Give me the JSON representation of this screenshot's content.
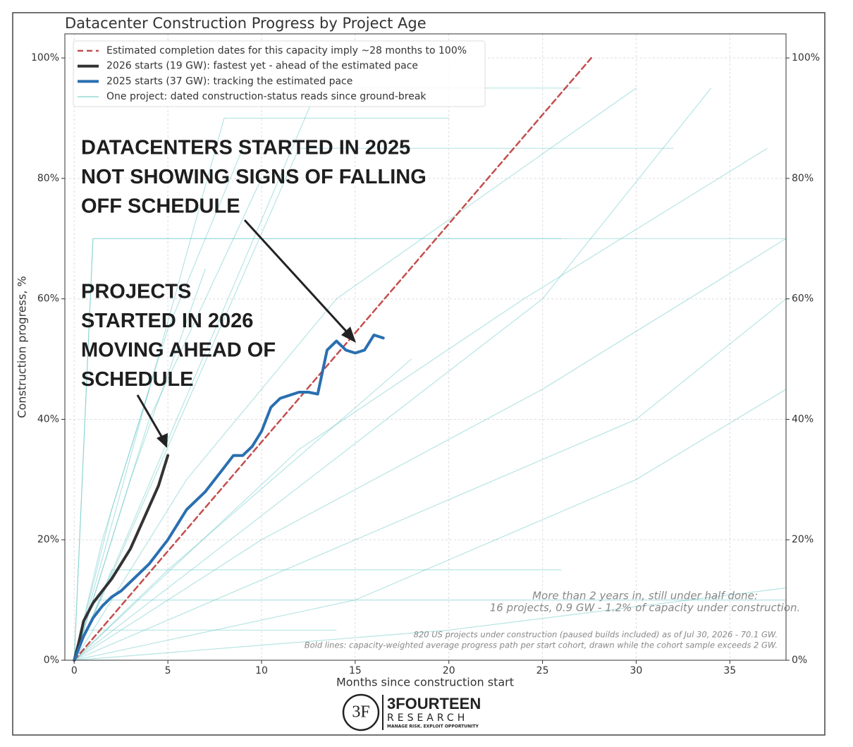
{
  "chart_data": {
    "type": "line",
    "title": "Datacenter Construction Progress by Project Age",
    "x_label": "Months since construction start",
    "y_label": "Construction progress, %",
    "xlim": [
      -0.5,
      38
    ],
    "ylim": [
      0,
      104
    ],
    "y2lim": [
      0,
      104
    ],
    "xticks": [
      0,
      5,
      10,
      15,
      20,
      25,
      30,
      35
    ],
    "yticks": [
      {
        "value": 0,
        "label": "0%"
      },
      {
        "value": 20,
        "label": "20%"
      },
      {
        "value": 40,
        "label": "40%"
      },
      {
        "value": 60,
        "label": "60%"
      },
      {
        "value": 80,
        "label": "80%"
      },
      {
        "value": 100,
        "label": "100%"
      }
    ],
    "y2ticks": [
      {
        "value": 0,
        "label": "0%"
      },
      {
        "value": 20,
        "label": "20%"
      },
      {
        "value": 40,
        "label": "40%"
      },
      {
        "value": 60,
        "label": "60%"
      },
      {
        "value": 80,
        "label": "80%"
      },
      {
        "value": 100,
        "label": "100%"
      }
    ],
    "grid": true,
    "legend": "upper left",
    "series": [
      {
        "name": "Estimated completion dates for this capacity imply ~28 months to 100%",
        "color": "#c44e4e",
        "dashed": true,
        "x": [
          0,
          27.6
        ],
        "values": [
          0,
          100
        ]
      },
      {
        "name": "2026 starts (19 GW): fastest yet - ahead of the estimated pace",
        "color": "#333333",
        "x": [
          0,
          0.25,
          0.5,
          1,
          1.5,
          2,
          2.5,
          3,
          3.5,
          4,
          4.5,
          4.8,
          5
        ],
        "values": [
          0,
          3,
          6.5,
          9.5,
          11.5,
          13.5,
          16,
          18.5,
          22,
          25.5,
          29,
          32,
          34
        ]
      },
      {
        "name": "2025 starts (37 GW): tracking the estimated pace",
        "color": "#2a6fb0",
        "x": [
          0,
          0.5,
          1,
          1.5,
          2,
          2.5,
          3,
          4,
          5,
          6,
          7,
          8,
          8.5,
          9,
          9.5,
          10,
          10.5,
          11,
          11.5,
          12,
          12.5,
          13,
          13.5,
          14,
          14.5,
          15,
          15.5,
          16,
          16.5
        ],
        "values": [
          0,
          4,
          7,
          9,
          10.5,
          11.5,
          13,
          16,
          20,
          25,
          28,
          32,
          34,
          34,
          35.5,
          38,
          42,
          43.5,
          44,
          44.5,
          44.5,
          44.2,
          51.5,
          53,
          51.5,
          51,
          51.5,
          54,
          53.5
        ]
      },
      {
        "name": "One project: dated construction-status reads since ground-break",
        "color": "#5fc4c4",
        "lines": [
          {
            "x": [
              0,
              13,
              27
            ],
            "values": [
              0,
              95,
              95
            ]
          },
          {
            "x": [
              0,
              8,
              20
            ],
            "values": [
              0,
              90,
              90
            ]
          },
          {
            "x": [
              0,
              12,
              32
            ],
            "values": [
              0,
              85,
              85
            ]
          },
          {
            "x": [
              0,
              1,
              26
            ],
            "values": [
              0,
              70,
              70
            ]
          },
          {
            "x": [
              0,
              1,
              38
            ],
            "values": [
              0,
              70,
              70
            ]
          },
          {
            "x": [
              0,
              2,
              26
            ],
            "values": [
              0,
              15,
              15
            ]
          },
          {
            "x": [
              0,
              1,
              38
            ],
            "values": [
              0,
              10,
              10
            ]
          },
          {
            "x": [
              0,
              0.5,
              14
            ],
            "values": [
              0,
              5,
              5
            ]
          },
          {
            "x": [
              0,
              6,
              14,
              30
            ],
            "values": [
              0,
              30,
              60,
              95
            ]
          },
          {
            "x": [
              0,
              4,
              10
            ],
            "values": [
              0,
              40,
              80
            ]
          },
          {
            "x": [
              0,
              10,
              25,
              38
            ],
            "values": [
              0,
              20,
              45,
              70
            ]
          },
          {
            "x": [
              0,
              15,
              30,
              38
            ],
            "values": [
              0,
              10,
              30,
              45
            ]
          },
          {
            "x": [
              0,
              20,
              38
            ],
            "values": [
              0,
              5,
              12
            ]
          },
          {
            "x": [
              0,
              3,
              7
            ],
            "values": [
              0,
              30,
              65
            ]
          },
          {
            "x": [
              0,
              2,
              5,
              9
            ],
            "values": [
              0,
              25,
              55,
              85
            ]
          },
          {
            "x": [
              0,
              12,
              24,
              37
            ],
            "values": [
              0,
              35,
              60,
              85
            ]
          },
          {
            "x": [
              0,
              25,
              34
            ],
            "values": [
              0,
              60,
              95
            ]
          },
          {
            "x": [
              0,
              30,
              38
            ],
            "values": [
              0,
              40,
              60
            ]
          },
          {
            "x": [
              0,
              5,
              18
            ],
            "values": [
              0,
              15,
              50
            ]
          },
          {
            "x": [
              0,
              1.5,
              4
            ],
            "values": [
              0,
              20,
              45
            ]
          }
        ]
      }
    ],
    "annotations": [
      {
        "lines": [
          "DATACENTERS STARTED IN 2025",
          "NOT SHOWING SIGNS OF FALLING",
          "OFF SCHEDULE"
        ]
      },
      {
        "lines": [
          "PROJECTS",
          "STARTED IN 2026",
          "MOVING AHEAD OF",
          "SCHEDULE"
        ]
      }
    ],
    "notes": [
      "More than 2 years in, still under half done:",
      "16 projects, 0.9 GW - 1.2% of capacity under construction."
    ],
    "footnotes": [
      "820 US projects under construction (paused builds included) as of Jul 30, 2026 - 70.1 GW.",
      "Bold lines: capacity-weighted average progress path per start cohort, drawn while the cohort sample exceeds 2 GW."
    ]
  },
  "logo": {
    "mark": "3F",
    "name": "3FOURTEEN",
    "sub": "RESEARCH",
    "tagline": "MANAGE RISK. EXPLOIT OPPORTUNITY"
  }
}
